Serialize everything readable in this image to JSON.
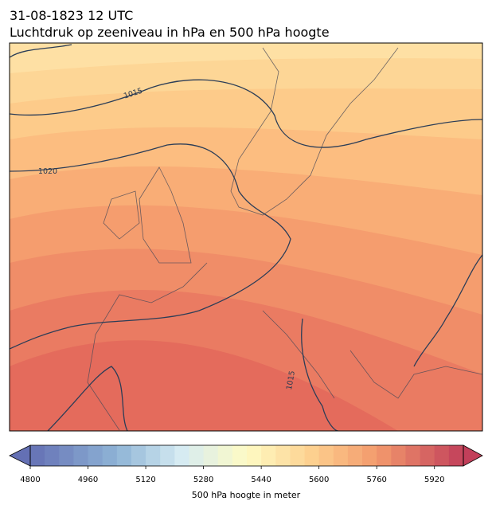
{
  "header": {
    "title": "31-08-1823 12 UTC",
    "subtitle": "Luchtdruk op zeeniveau in hPa en 500 hPa hoogte"
  },
  "map": {
    "contour_labels": [
      1015,
      1020,
      1015
    ]
  },
  "colorbar": {
    "label": "500 hPa hoogte in meter",
    "lim": [
      4800,
      6000
    ],
    "step": 40,
    "ticks": [
      4800,
      4960,
      5120,
      5280,
      5440,
      5600,
      5760,
      5920
    ]
  }
}
